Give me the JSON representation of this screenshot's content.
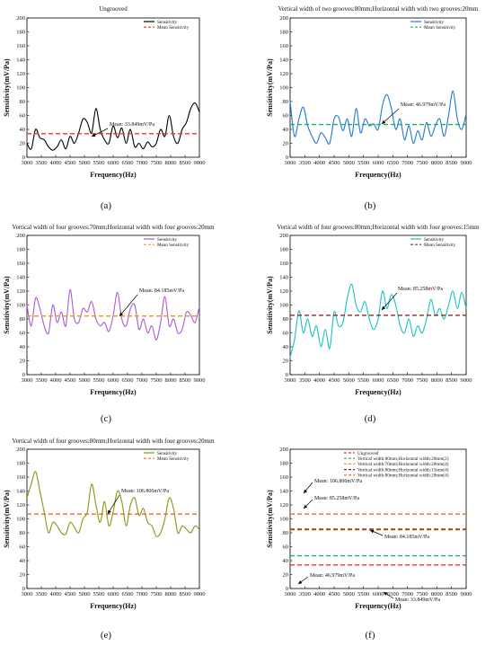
{
  "chart_data": [
    {
      "type": "line",
      "letter_label": "(a)",
      "title": "Ungrooved",
      "xlabel": "Frequency(Hz)",
      "ylabel": "Sensitivity(mV/Pa)",
      "xlim": [
        3000,
        9000
      ],
      "ylim": [
        0,
        200
      ],
      "xticks": [
        3000,
        3500,
        4000,
        4500,
        5000,
        5500,
        6000,
        6500,
        7000,
        7500,
        8000,
        8500,
        9000
      ],
      "yticks": [
        0,
        20,
        40,
        60,
        80,
        100,
        120,
        140,
        160,
        180,
        200
      ],
      "legend_position": "top-right",
      "annotation": "Mean: 33.849mV/Pa",
      "series": [
        {
          "name": "Sensitivity",
          "color": "#000000",
          "style": "solid",
          "x": [
            3000,
            3150,
            3300,
            3450,
            3600,
            3750,
            3900,
            4050,
            4200,
            4350,
            4500,
            4650,
            4800,
            4950,
            5100,
            5250,
            5400,
            5550,
            5700,
            5850,
            6000,
            6150,
            6300,
            6450,
            6600,
            6750,
            6900,
            7050,
            7200,
            7350,
            7500,
            7650,
            7800,
            7950,
            8100,
            8250,
            8400,
            8550,
            8700,
            8850,
            9000
          ],
          "y": [
            20,
            12,
            40,
            28,
            25,
            15,
            10,
            15,
            25,
            12,
            30,
            20,
            35,
            55,
            50,
            35,
            70,
            40,
            25,
            20,
            45,
            28,
            42,
            20,
            40,
            15,
            20,
            12,
            22,
            15,
            20,
            40,
            30,
            60,
            30,
            20,
            40,
            50,
            70,
            78,
            65
          ]
        },
        {
          "name": "Mean Sensitivity",
          "color": "#e8352e",
          "style": "dashed",
          "x": [
            3000,
            9000
          ],
          "y": [
            33.849,
            33.849
          ]
        }
      ]
    },
    {
      "type": "line",
      "letter_label": "(b)",
      "title": "Vertical width of two grooves:80mm;Horizontal width with two grooves:20mm",
      "xlabel": "Frequency(Hz)",
      "ylabel": "Sensitivity(mV/Pa)",
      "xlim": [
        3000,
        9000
      ],
      "ylim": [
        0,
        200
      ],
      "xticks": [
        3000,
        3500,
        4000,
        4500,
        5000,
        5500,
        6000,
        6500,
        7000,
        7500,
        8000,
        8500,
        9000
      ],
      "yticks": [
        0,
        20,
        40,
        60,
        80,
        100,
        120,
        140,
        160,
        180,
        200
      ],
      "legend_position": "top-right",
      "annotation": "Mean: 46.979mV/Pa",
      "series": [
        {
          "name": "Sensitivity",
          "color": "#1f78d1",
          "style": "solid",
          "x": [
            3000,
            3150,
            3300,
            3450,
            3600,
            3750,
            3900,
            4050,
            4200,
            4350,
            4500,
            4650,
            4800,
            4950,
            5100,
            5250,
            5400,
            5550,
            5700,
            5850,
            6000,
            6150,
            6300,
            6450,
            6600,
            6750,
            6900,
            7050,
            7200,
            7350,
            7500,
            7650,
            7800,
            7950,
            8100,
            8250,
            8400,
            8550,
            8700,
            8850,
            9000
          ],
          "y": [
            80,
            30,
            55,
            72,
            45,
            30,
            20,
            35,
            28,
            20,
            55,
            58,
            38,
            55,
            30,
            70,
            35,
            55,
            45,
            48,
            40,
            75,
            90,
            70,
            40,
            55,
            25,
            45,
            20,
            38,
            25,
            50,
            30,
            45,
            55,
            30,
            60,
            95,
            55,
            40,
            62
          ]
        },
        {
          "name": "Mean Sensitivity",
          "color": "#2aa862",
          "style": "dashed",
          "x": [
            3000,
            9000
          ],
          "y": [
            46.979,
            46.979
          ]
        }
      ]
    },
    {
      "type": "line",
      "letter_label": "(c)",
      "title": "Vertical width of four grooves:70mm;Horizontal width with four grooves:20mm",
      "xlabel": "Frequency(Hz)",
      "ylabel": "Sensitivity(mV/Pa)",
      "xlim": [
        3000,
        9000
      ],
      "ylim": [
        0,
        200
      ],
      "xticks": [
        3000,
        3500,
        4000,
        4500,
        5000,
        5500,
        6000,
        6500,
        7000,
        7500,
        8000,
        8500,
        9000
      ],
      "yticks": [
        0,
        20,
        40,
        60,
        80,
        100,
        120,
        140,
        160,
        180,
        200
      ],
      "legend_position": "top-right",
      "annotation": "Mean: 84.185mV/Pa",
      "series": [
        {
          "name": "Sensitivity",
          "color": "#a85ad8",
          "style": "solid",
          "x": [
            3000,
            3150,
            3300,
            3450,
            3600,
            3750,
            3900,
            4050,
            4200,
            4350,
            4500,
            4650,
            4800,
            4950,
            5100,
            5250,
            5400,
            5550,
            5700,
            5850,
            6000,
            6150,
            6300,
            6450,
            6600,
            6750,
            6900,
            7050,
            7200,
            7350,
            7500,
            7650,
            7800,
            7950,
            8100,
            8250,
            8400,
            8550,
            8700,
            8850,
            9000
          ],
          "y": [
            100,
            70,
            110,
            95,
            70,
            60,
            100,
            75,
            90,
            70,
            122,
            80,
            75,
            95,
            90,
            105,
            80,
            70,
            75,
            62,
            85,
            118,
            80,
            70,
            95,
            100,
            65,
            80,
            60,
            70,
            50,
            75,
            112,
            70,
            80,
            60,
            65,
            90,
            85,
            75,
            98
          ]
        },
        {
          "name": "Mean Sensitivity",
          "color": "#f09a20",
          "style": "dashed",
          "x": [
            3000,
            9000
          ],
          "y": [
            84.185,
            84.185
          ]
        }
      ]
    },
    {
      "type": "line",
      "letter_label": "(d)",
      "title": "Vertical width of four grooves:80mm;Horizontal width with four grooves:15mm",
      "xlabel": "Frequency(Hz)",
      "ylabel": "Sensitivity(mV/Pa)",
      "xlim": [
        3000,
        9000
      ],
      "ylim": [
        0,
        200
      ],
      "xticks": [
        3000,
        3500,
        4000,
        4500,
        5000,
        5500,
        6000,
        6500,
        7000,
        7500,
        8000,
        8500,
        9000
      ],
      "yticks": [
        0,
        20,
        40,
        60,
        80,
        100,
        120,
        140,
        160,
        180,
        200
      ],
      "legend_position": "top-right",
      "annotation": "Mean: 85.258mV/Pa",
      "series": [
        {
          "name": "Sensitivity",
          "color": "#18c2c6",
          "style": "solid",
          "x": [
            3000,
            3150,
            3300,
            3450,
            3600,
            3750,
            3900,
            4050,
            4200,
            4350,
            4500,
            4650,
            4800,
            4950,
            5100,
            5250,
            5400,
            5550,
            5700,
            5850,
            6000,
            6150,
            6300,
            6450,
            6600,
            6750,
            6900,
            7050,
            7200,
            7350,
            7500,
            7650,
            7800,
            7950,
            8100,
            8250,
            8400,
            8550,
            8700,
            8850,
            9000
          ],
          "y": [
            25,
            50,
            92,
            60,
            80,
            55,
            70,
            40,
            65,
            38,
            90,
            70,
            75,
            110,
            130,
            100,
            90,
            105,
            80,
            65,
            80,
            120,
            95,
            115,
            100,
            70,
            60,
            80,
            55,
            70,
            60,
            80,
            108,
            85,
            95,
            80,
            100,
            120,
            95,
            118,
            95
          ]
        },
        {
          "name": "Mean Sensitivity",
          "color": "#8b2a2a",
          "style": "dashed",
          "x": [
            3000,
            9000
          ],
          "y": [
            85.258,
            85.258
          ]
        }
      ]
    },
    {
      "type": "line",
      "letter_label": "(e)",
      "title": "Vertical width of four grooves:80mm;Horizontal width with four grooves:20mm",
      "xlabel": "Frequency(Hz)",
      "ylabel": "Sensitivity(mV/Pa)",
      "xlim": [
        3000,
        9000
      ],
      "ylim": [
        0,
        200
      ],
      "xticks": [
        3000,
        3500,
        4000,
        4500,
        5000,
        5500,
        6000,
        6500,
        7000,
        7500,
        8000,
        8500,
        9000
      ],
      "yticks": [
        0,
        20,
        40,
        60,
        80,
        100,
        120,
        140,
        160,
        180,
        200
      ],
      "legend_position": "top-right",
      "annotation": "Mean: 106.806mV/Pa",
      "series": [
        {
          "name": "Sensitivity",
          "color": "#8a9410",
          "style": "solid",
          "x": [
            3000,
            3150,
            3300,
            3450,
            3600,
            3750,
            3900,
            4050,
            4200,
            4350,
            4500,
            4650,
            4800,
            4950,
            5100,
            5250,
            5400,
            5550,
            5700,
            5850,
            6000,
            6150,
            6300,
            6450,
            6600,
            6750,
            6900,
            7050,
            7200,
            7350,
            7500,
            7650,
            7800,
            7950,
            8100,
            8250,
            8400,
            8550,
            8700,
            8850,
            9000
          ],
          "y": [
            130,
            150,
            168,
            140,
            110,
            80,
            95,
            90,
            80,
            78,
            95,
            88,
            80,
            100,
            110,
            150,
            120,
            95,
            125,
            90,
            110,
            140,
            125,
            90,
            120,
            130,
            105,
            115,
            95,
            90,
            75,
            80,
            100,
            130,
            115,
            80,
            90,
            85,
            80,
            90,
            85
          ]
        },
        {
          "name": "Mean Sensitivity",
          "color": "#f06a20",
          "style": "dashed",
          "x": [
            3000,
            9000
          ],
          "y": [
            106.806,
            106.806
          ]
        }
      ]
    },
    {
      "type": "line",
      "letter_label": "(f)",
      "title": "",
      "xlabel": "Frequency(Hz)",
      "ylabel": "Sensitivity(mV/Pa)",
      "xlim": [
        3000,
        9000
      ],
      "ylim": [
        0,
        200
      ],
      "xticks": [
        3000,
        3500,
        4000,
        4500,
        5000,
        5500,
        6000,
        6500,
        7000,
        7500,
        8000,
        8500,
        9000
      ],
      "yticks": [
        0,
        20,
        40,
        60,
        80,
        100,
        120,
        140,
        160,
        180,
        200
      ],
      "legend_position": "top-right",
      "annotations": [
        "Mean: 106.806mV/Pa",
        "Mean: 85.258mV/Pa",
        "Mean: 84.185mV/Pa",
        "Mean: 46.979mV/Pa",
        "Mean: 33.849mV/Pa"
      ],
      "series": [
        {
          "name": "Ungrooved",
          "color": "#e8352e",
          "style": "dashed",
          "x": [
            3000,
            9000
          ],
          "y": [
            33.849,
            33.849
          ]
        },
        {
          "name": "Vertical width:80mm;Horizontal width:20mm(2)",
          "color": "#2aa862",
          "style": "dashed",
          "x": [
            3000,
            9000
          ],
          "y": [
            46.979,
            46.979
          ]
        },
        {
          "name": "Vertical width:70mm;Horizontal width:20mm(4)",
          "color": "#f09a20",
          "style": "dashed",
          "x": [
            3000,
            9000
          ],
          "y": [
            84.185,
            84.185
          ]
        },
        {
          "name": "Vertical width:80mm;Horizontal width:15mm(4)",
          "color": "#8b2a2a",
          "style": "dashed",
          "x": [
            3000,
            9000
          ],
          "y": [
            85.258,
            85.258
          ]
        },
        {
          "name": "Vertical width:80mm;Horizontal width:20mm(4)",
          "color": "#f06a20",
          "style": "dashed",
          "x": [
            3000,
            9000
          ],
          "y": [
            106.806,
            106.806
          ]
        }
      ]
    }
  ]
}
